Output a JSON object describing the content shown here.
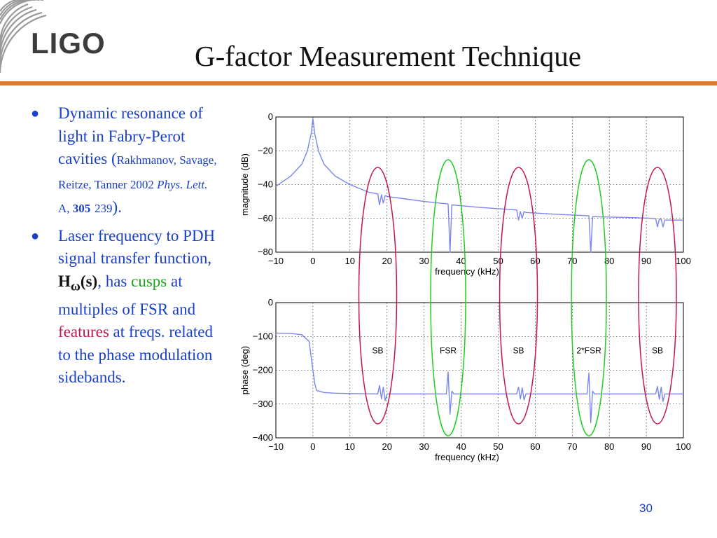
{
  "header": {
    "logo_text": "LIGO",
    "title": "G-factor Measurement Technique"
  },
  "bullets": {
    "b1": {
      "text1": "Dynamic resonance of light in Fabry-Perot cavities (",
      "authors": "Rakhmanov, Savage, Reitze, Tanner 2002 ",
      "journal": "Phys. Lett.",
      "volume_prefix": " A, ",
      "volume": "305",
      "page": "239",
      "close": ")."
    },
    "b2": {
      "text1": "Laser frequency to PDH signal transfer function, ",
      "h_sym": "H",
      "h_sub": "ω",
      "h_arg": "(s)",
      "comma": ", has ",
      "cusps": "cusps",
      "text2": " at multiples of FSR and ",
      "features": "features",
      "text3": " at freqs. related to the phase modulation sidebands."
    }
  },
  "colors": {
    "accent_rule": "#e0782a",
    "text_blue": "#1a3fc9",
    "sb_ellipse": "#c3184e",
    "fsr_ellipse": "#22cc22",
    "trace": "#7b86f2"
  },
  "chart_data": [
    {
      "type": "line",
      "title": "",
      "xlabel": "frequency (kHz)",
      "ylabel": "magnitude (dB)",
      "xlim": [
        -10,
        100
      ],
      "ylim": [
        -80,
        0
      ],
      "xticks": [
        -10,
        0,
        10,
        20,
        30,
        40,
        50,
        60,
        70,
        80,
        90,
        100
      ],
      "yticks": [
        0,
        -20,
        -40,
        -60,
        -80
      ],
      "grid": true,
      "series": [
        {
          "x": [
            -10,
            -6,
            -3,
            -1.5,
            -0.5,
            0,
            0.5,
            1.5,
            3,
            6,
            10,
            15,
            17.5,
            18,
            18.5,
            19,
            19.5,
            20,
            25,
            30,
            36.5,
            37,
            37.5,
            45,
            55,
            55.5,
            56,
            56.5,
            57,
            57.5,
            65,
            74.5,
            75,
            75.5,
            85,
            92.5,
            93,
            93.5,
            94,
            94.5,
            95,
            100
          ],
          "y": [
            -41,
            -35,
            -28,
            -20,
            -10,
            -1,
            -10,
            -20,
            -28,
            -35,
            -40,
            -44.5,
            -45.5,
            -52,
            -46,
            -51,
            -46.5,
            -47,
            -48.5,
            -50,
            -51.5,
            -80,
            -52,
            -53.5,
            -55,
            -61,
            -56,
            -60,
            -56,
            -56.5,
            -57.5,
            -58.5,
            -80,
            -59,
            -59.5,
            -60,
            -65,
            -60.5,
            -60.5,
            -65,
            -61,
            -61
          ]
        }
      ]
    },
    {
      "type": "line",
      "title": "",
      "xlabel": "frequency (kHz)",
      "ylabel": "phase (deg)",
      "xlim": [
        -10,
        100
      ],
      "ylim": [
        -400,
        0
      ],
      "xticks": [
        -10,
        0,
        10,
        20,
        30,
        40,
        50,
        60,
        70,
        80,
        90,
        100
      ],
      "yticks": [
        0,
        -100,
        -200,
        -300,
        -400
      ],
      "grid": true,
      "annotations": [
        {
          "x": 17.5,
          "y": -150,
          "text": "SB"
        },
        {
          "x": 36.5,
          "y": -150,
          "text": "FSR"
        },
        {
          "x": 55.5,
          "y": -150,
          "text": "SB"
        },
        {
          "x": 74.5,
          "y": -150,
          "text": "2*FSR"
        },
        {
          "x": 93,
          "y": -150,
          "text": "SB"
        }
      ],
      "series": [
        {
          "x": [
            -10,
            -6,
            -3,
            -1,
            -0.5,
            0,
            0.5,
            1,
            3,
            6,
            10,
            17.5,
            18,
            18.5,
            19,
            19.5,
            20,
            36,
            36.5,
            37,
            37.5,
            38,
            55,
            55.5,
            56,
            56.5,
            57,
            57.5,
            74,
            74.5,
            75,
            75.5,
            76,
            92.5,
            93,
            93.5,
            94,
            94.5,
            95,
            100
          ],
          "y": [
            -90,
            -91,
            -95,
            -115,
            -160,
            -200,
            -240,
            -260,
            -266,
            -268,
            -269,
            -270,
            -245,
            -285,
            -250,
            -290,
            -270,
            -270,
            -205,
            -330,
            -262,
            -270,
            -270,
            -250,
            -285,
            -252,
            -288,
            -270,
            -270,
            -208,
            -355,
            -262,
            -270,
            -270,
            -248,
            -286,
            -250,
            -292,
            -270,
            -270
          ]
        }
      ]
    }
  ],
  "ellipses": [
    {
      "label": "SB",
      "kind": "sb",
      "x": 17.5
    },
    {
      "label": "FSR",
      "kind": "fsr",
      "x": 36.5
    },
    {
      "label": "SB",
      "kind": "sb",
      "x": 55.5
    },
    {
      "label": "2*FSR",
      "kind": "fsr",
      "x": 74.5
    },
    {
      "label": "SB",
      "kind": "sb",
      "x": 93
    }
  ],
  "footer": {
    "page_number": "30"
  }
}
